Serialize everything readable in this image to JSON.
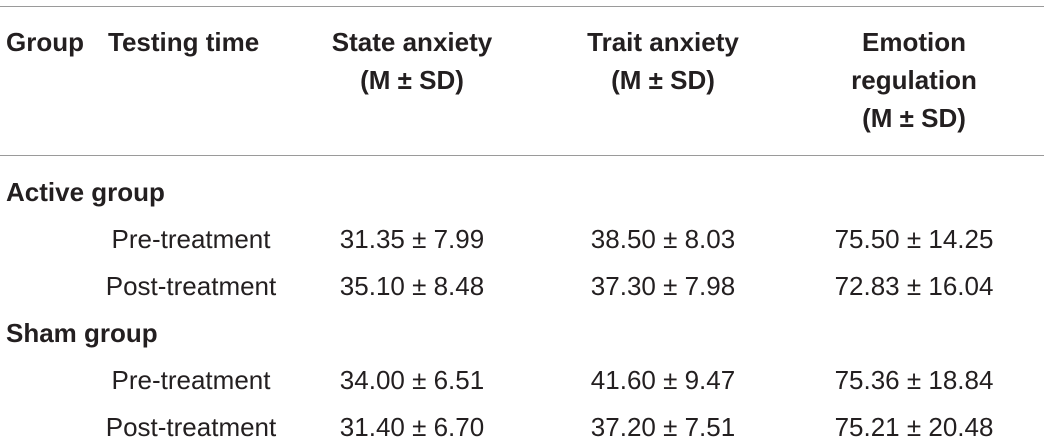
{
  "header": {
    "group": "Group",
    "testing_time": "Testing time",
    "state_anxiety": [
      "State anxiety",
      "(M ± SD)"
    ],
    "trait_anxiety": [
      "Trait anxiety",
      "(M ± SD)"
    ],
    "emotion_regulation": [
      "Emotion",
      "regulation",
      "(M ± SD)"
    ]
  },
  "groups": [
    {
      "name": "Active group",
      "rows": [
        {
          "time": "Pre-treatment",
          "state": "31.35 ± 7.99",
          "trait": "38.50 ± 8.03",
          "emotion": "75.50 ± 14.25"
        },
        {
          "time": "Post-treatment",
          "state": "35.10 ± 8.48",
          "trait": "37.30 ± 7.98",
          "emotion": "72.83 ± 16.04"
        }
      ]
    },
    {
      "name": "Sham group",
      "rows": [
        {
          "time": "Pre-treatment",
          "state": "34.00 ± 6.51",
          "trait": "41.60 ± 9.47",
          "emotion": "75.36 ± 18.84"
        },
        {
          "time": "Post-treatment",
          "state": "31.40 ± 6.70",
          "trait": "37.20 ± 7.51",
          "emotion": "75.21 ± 20.48"
        }
      ]
    }
  ]
}
